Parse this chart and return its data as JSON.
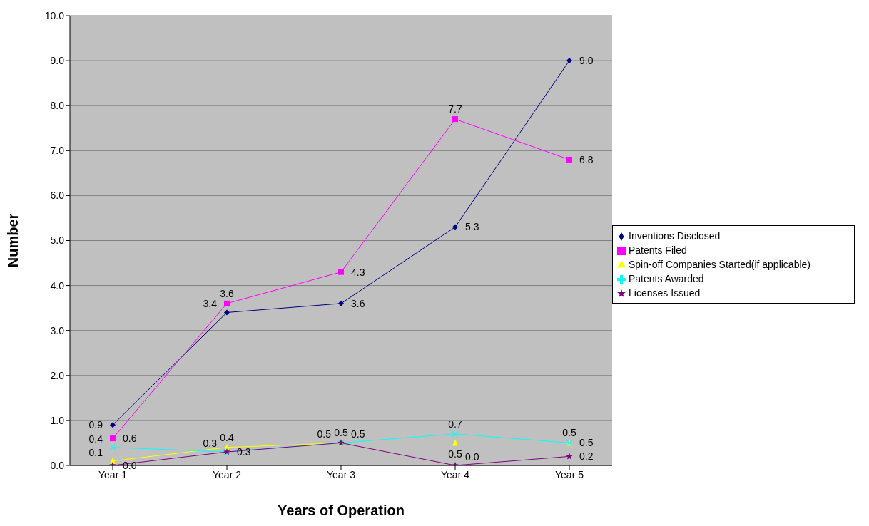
{
  "chart_data": {
    "type": "line",
    "xlabel": "Years of Operation",
    "ylabel": "Number",
    "categories": [
      "Year 1",
      "Year 2",
      "Year 3",
      "Year 4",
      "Year 5"
    ],
    "series": [
      {
        "name": "Inventions Disclosed",
        "color": "#000080",
        "marker": "diamond",
        "values": [
          0.9,
          3.4,
          3.6,
          5.3,
          9.0
        ],
        "value_labels": [
          "0.9",
          "3.4",
          "3.6",
          "5.3",
          "9.0"
        ]
      },
      {
        "name": "Patents Filed",
        "color": "#ff00ff",
        "marker": "square",
        "values": [
          0.6,
          3.6,
          4.3,
          7.7,
          6.8
        ],
        "value_labels": [
          "0.6",
          "3.6",
          "4.3",
          "7.7",
          "6.8"
        ]
      },
      {
        "name": "Spin-off Companies Started(if applicable)",
        "color": "#ffff00",
        "marker": "triangle",
        "values": [
          0.1,
          0.4,
          0.5,
          0.5,
          0.5
        ],
        "value_labels": [
          "0.1",
          "0.4",
          "0.5",
          "0.5",
          "0.5"
        ]
      },
      {
        "name": "Patents Awarded",
        "color": "#00ffff",
        "marker": "cross",
        "values": [
          0.4,
          0.3,
          0.5,
          0.7,
          0.5
        ],
        "value_labels": [
          "0.4",
          "0.3",
          "0.5",
          "0.7",
          "0.5"
        ]
      },
      {
        "name": "Licenses Issued",
        "color": "#800080",
        "marker": "star",
        "values": [
          0.0,
          0.3,
          0.5,
          0.0,
          0.2
        ],
        "value_labels": [
          "0.0",
          "0.3",
          "0.5",
          "0.0",
          "0.2"
        ]
      }
    ],
    "ylim": [
      0,
      10
    ],
    "yticks": [
      {
        "value": 0,
        "label": "0.0"
      },
      {
        "value": 1,
        "label": "1.0"
      },
      {
        "value": 2,
        "label": "2.0"
      },
      {
        "value": 3,
        "label": "3.0"
      },
      {
        "value": 4,
        "label": "4.0"
      },
      {
        "value": 5,
        "label": "5.0"
      },
      {
        "value": 6,
        "label": "6.0"
      },
      {
        "value": 7,
        "label": "7.0"
      },
      {
        "value": 8,
        "label": "8.0"
      },
      {
        "value": 9,
        "label": "9.0"
      },
      {
        "value": 10,
        "label": "10.0"
      }
    ],
    "grid": "y",
    "legend": "right",
    "line_style": "solid"
  }
}
